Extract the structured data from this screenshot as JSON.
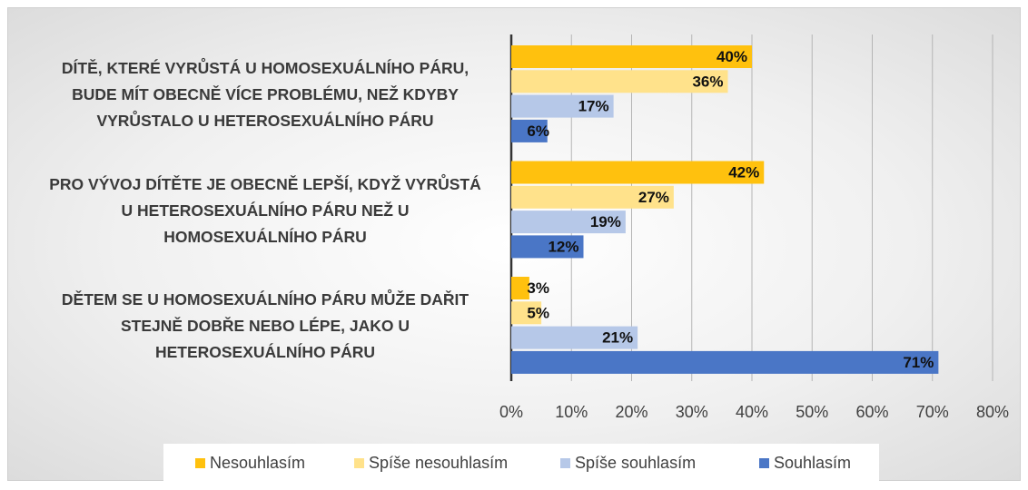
{
  "chart_data": {
    "type": "bar",
    "orientation": "horizontal",
    "categories": [
      "DÍTĚ, KTERÉ VYRŮSTÁ U HOMOSEXUÁLNÍHO PÁRU, BUDE MÍT OBECNĚ VÍCE PROBLÉMU, NEŽ KDYBY VYRŮSTALO U HETEROSEXUÁLNÍHO PÁRU",
      "PRO VÝVOJ DÍTĚTE JE OBECNĚ LEPŠÍ, KDYŽ VYRŮSTÁ U HETEROSEXUÁLNÍHO PÁRU NEŽ U HOMOSEXUÁLNÍHO PÁRU",
      "DĚTEM SE U HOMOSEXUÁLNÍHO PÁRU MŮŽE DAŘIT STEJNĚ DOBŘE NEBO LÉPE, JAKO U HETEROSEXUÁLNÍHO PÁRU"
    ],
    "series": [
      {
        "name": "Nesouhlasím",
        "color": "#FFC10E",
        "values": [
          40,
          42,
          3
        ],
        "value_labels": [
          "40%",
          "42%",
          "3%"
        ]
      },
      {
        "name": "Spíše nesouhlasím",
        "color": "#FFE28B",
        "values": [
          36,
          27,
          5
        ],
        "value_labels": [
          "36%",
          "27%",
          "5%"
        ]
      },
      {
        "name": "Spíše souhlasím",
        "color": "#B6C8E8",
        "values": [
          17,
          19,
          21
        ],
        "value_labels": [
          "17%",
          "19%",
          "21%"
        ]
      },
      {
        "name": "Souhlasím",
        "color": "#4A76C6",
        "values": [
          6,
          12,
          71
        ],
        "value_labels": [
          "6%",
          "12%",
          "71%"
        ]
      }
    ],
    "xlim": [
      0,
      80
    ],
    "xticks": [
      {
        "value": 0,
        "label": "0%"
      },
      {
        "value": 10,
        "label": "10%"
      },
      {
        "value": 20,
        "label": "20%"
      },
      {
        "value": 30,
        "label": "30%"
      },
      {
        "value": 40,
        "label": "40%"
      },
      {
        "value": 50,
        "label": "50%"
      },
      {
        "value": 60,
        "label": "60%"
      },
      {
        "value": 70,
        "label": "70%"
      },
      {
        "value": 80,
        "label": "80%"
      }
    ],
    "grid": true,
    "legend": "bottom"
  }
}
